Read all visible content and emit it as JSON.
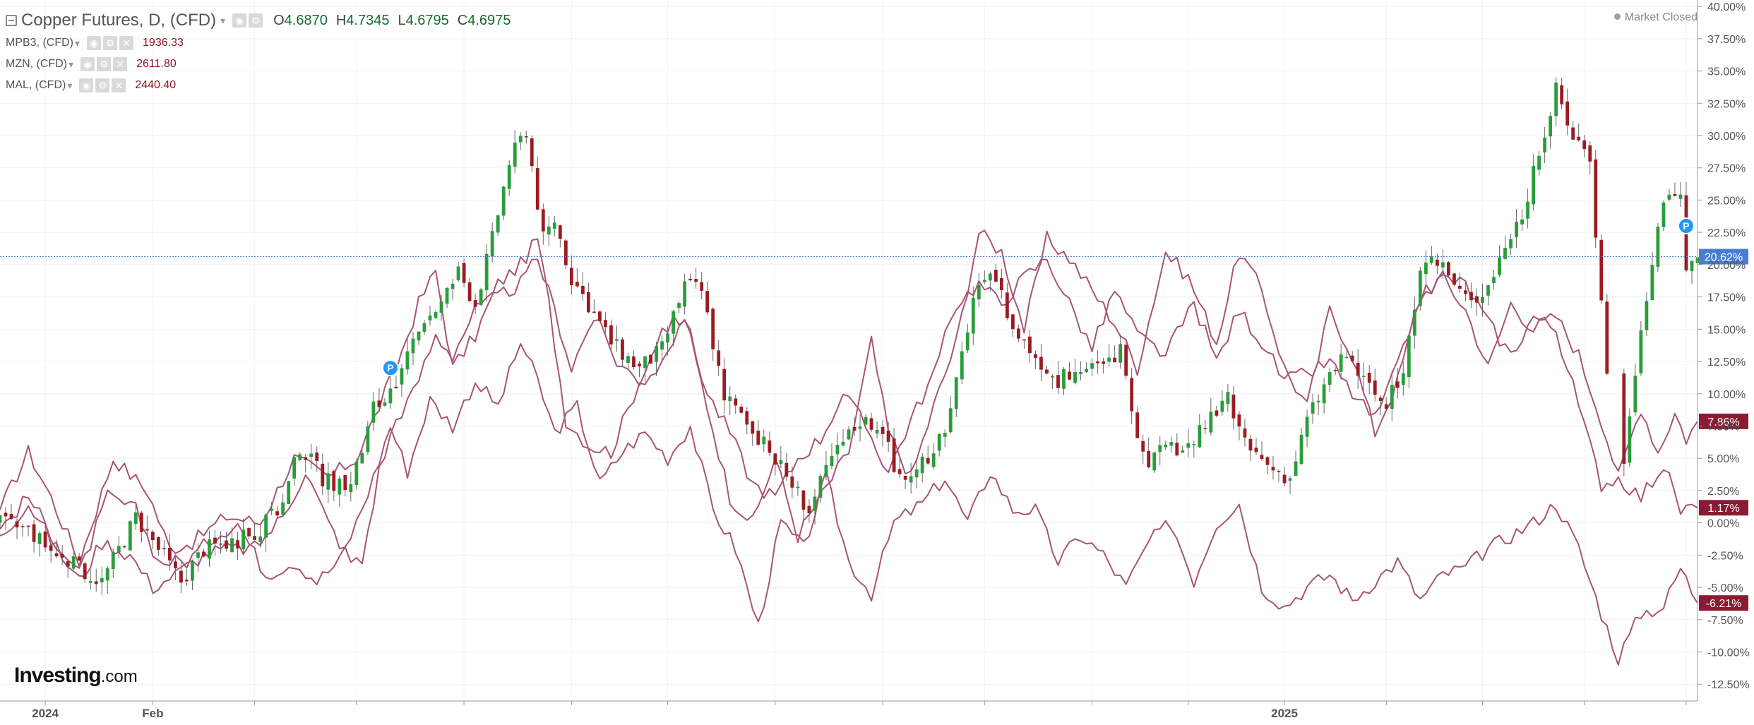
{
  "header": {
    "title": "Copper Futures, D, (CFD)",
    "ohlc": [
      {
        "label": "O",
        "value": "4.6870"
      },
      {
        "label": "H",
        "value": "4.7345"
      },
      {
        "label": "L",
        "value": "4.6795"
      },
      {
        "label": "C",
        "value": "4.6975"
      }
    ]
  },
  "compare": [
    {
      "symbol": "MPB3, (CFD)",
      "value": "1936.33"
    },
    {
      "symbol": "MZN, (CFD)",
      "value": "2611.80"
    },
    {
      "symbol": "MAL, (CFD)",
      "value": "2440.40"
    }
  ],
  "status": "Market Closed",
  "brand": {
    "name": "Investing",
    "suffix": ".com"
  },
  "chart_data": {
    "type": "line",
    "yaxis_ticks": [
      40,
      37.5,
      35,
      32.5,
      30,
      27.5,
      25,
      22.5,
      20,
      17.5,
      15,
      12.5,
      10,
      7.5,
      5,
      2.5,
      0,
      -2.5,
      -5,
      -7.5,
      -10,
      -12.5
    ],
    "yaxis_tick_labels": [
      "40.00%",
      "37.50%",
      "35.00%",
      "32.50%",
      "30.00%",
      "27.50%",
      "25.00%",
      "22.50%",
      "20.00%",
      "17.50%",
      "15.00%",
      "12.50%",
      "10.00%",
      "7.50%",
      "5.00%",
      "2.50%",
      "0.00%",
      "-2.50%",
      "-5.00%",
      "-7.50%",
      "-10.00%",
      "-12.50%"
    ],
    "ylim": [
      -13.8,
      40.5
    ],
    "xlim": [
      0,
      300
    ],
    "x_labels": [
      {
        "x": 8,
        "label": "2024"
      },
      {
        "x": 27,
        "label": "Feb"
      },
      {
        "x": 227,
        "label": "2025"
      }
    ],
    "x_ticks": [
      8,
      27,
      45,
      63,
      82,
      101,
      118,
      137,
      156,
      174,
      193,
      210,
      227,
      245,
      262,
      280,
      298
    ],
    "colors": {
      "up": "#2a9d3b",
      "down": "#9b1c23",
      "compare": "#a85475",
      "current": "#4a7ed6",
      "badge": "#8c1a33"
    },
    "current_value": 20.62,
    "current_label": "20.62%",
    "end_badges": [
      {
        "value": 7.86,
        "label": "7.86%"
      },
      {
        "value": 1.17,
        "label": "1.17%"
      },
      {
        "value": -6.21,
        "label": "-6.21%"
      }
    ],
    "markers": [
      {
        "x": 69,
        "y": 12.0,
        "label": "P"
      },
      {
        "x": 298,
        "y": 23.0,
        "label": "P"
      }
    ],
    "copper_keypoints": [
      [
        0,
        0
      ],
      [
        5,
        -0.5
      ],
      [
        10,
        -2.5
      ],
      [
        14,
        -3.5
      ],
      [
        18,
        -4.5
      ],
      [
        24,
        0.5
      ],
      [
        28,
        -2
      ],
      [
        32,
        -4.5
      ],
      [
        36,
        -2
      ],
      [
        40,
        -1.5
      ],
      [
        45,
        -1
      ],
      [
        50,
        1.5
      ],
      [
        53,
        6
      ],
      [
        57,
        3.5
      ],
      [
        61,
        2.5
      ],
      [
        64,
        5.5
      ],
      [
        66,
        9
      ],
      [
        70,
        10
      ],
      [
        74,
        15.5
      ],
      [
        78,
        17
      ],
      [
        81,
        19.5
      ],
      [
        84,
        17
      ],
      [
        87,
        22
      ],
      [
        90,
        28
      ],
      [
        93,
        30.5
      ],
      [
        96,
        22
      ],
      [
        98,
        23.5
      ],
      [
        101,
        19
      ],
      [
        104,
        17
      ],
      [
        108,
        14
      ],
      [
        113,
        12
      ],
      [
        117,
        13.5
      ],
      [
        121,
        18.5
      ],
      [
        124,
        18
      ],
      [
        128,
        10
      ],
      [
        133,
        7
      ],
      [
        137,
        5
      ],
      [
        140,
        3
      ],
      [
        143,
        1
      ],
      [
        147,
        5
      ],
      [
        152,
        8
      ],
      [
        156,
        7.5
      ],
      [
        158,
        4
      ],
      [
        161,
        3.5
      ],
      [
        164,
        5
      ],
      [
        168,
        8.5
      ],
      [
        172,
        17.5
      ],
      [
        176,
        19
      ],
      [
        179,
        15
      ],
      [
        183,
        13
      ],
      [
        187,
        11
      ],
      [
        191,
        12
      ],
      [
        195,
        12
      ],
      [
        198,
        13.5
      ],
      [
        200,
        8
      ],
      [
        203,
        5
      ],
      [
        206,
        5.5
      ],
      [
        210,
        6
      ],
      [
        213,
        7.5
      ],
      [
        217,
        9.5
      ],
      [
        220,
        6
      ],
      [
        224,
        4.5
      ],
      [
        228,
        3.5
      ],
      [
        231,
        8
      ],
      [
        235,
        11.5
      ],
      [
        238,
        13
      ],
      [
        241,
        11
      ],
      [
        245,
        9
      ],
      [
        248,
        12
      ],
      [
        251,
        19
      ],
      [
        254,
        20.5
      ],
      [
        257,
        18.5
      ],
      [
        260,
        17
      ],
      [
        263,
        18.5
      ],
      [
        266,
        21.5
      ],
      [
        269,
        24
      ],
      [
        272,
        28.5
      ],
      [
        275,
        33.5
      ],
      [
        278,
        30
      ],
      [
        281,
        28.5
      ],
      [
        283,
        17
      ],
      [
        285,
        7
      ],
      [
        287,
        4.5
      ],
      [
        289,
        12
      ],
      [
        291,
        17
      ],
      [
        293,
        23
      ],
      [
        295,
        26
      ],
      [
        297,
        25.5
      ],
      [
        298,
        19.5
      ],
      [
        300,
        20.62
      ]
    ],
    "series": [
      {
        "points": [
          [
            0,
            1
          ],
          [
            5,
            5.5
          ],
          [
            9,
            2
          ],
          [
            14,
            -3
          ],
          [
            20,
            5
          ],
          [
            26,
            2.5
          ],
          [
            30,
            -2
          ],
          [
            34,
            -1.5
          ],
          [
            40,
            0.5
          ],
          [
            46,
            0
          ],
          [
            52,
            5
          ],
          [
            58,
            3.5
          ],
          [
            63,
            5
          ],
          [
            66,
            8
          ],
          [
            70,
            12
          ],
          [
            74,
            17
          ],
          [
            77,
            19.5
          ],
          [
            80,
            12
          ],
          [
            84,
            14.5
          ],
          [
            88,
            18.5
          ],
          [
            92,
            20
          ],
          [
            95,
            22
          ],
          [
            97,
            17
          ],
          [
            100,
            8
          ],
          [
            104,
            6
          ],
          [
            108,
            5.5
          ],
          [
            113,
            11
          ],
          [
            117,
            12
          ],
          [
            121,
            16
          ],
          [
            125,
            9
          ],
          [
            129,
            2
          ],
          [
            133,
            0
          ],
          [
            137,
            5
          ],
          [
            141,
            -1
          ],
          [
            145,
            2
          ],
          [
            150,
            5.5
          ],
          [
            154,
            14
          ],
          [
            157,
            7
          ],
          [
            161,
            3.5
          ],
          [
            165,
            9
          ],
          [
            169,
            14
          ],
          [
            173,
            22.5
          ],
          [
            177,
            21
          ],
          [
            181,
            15
          ],
          [
            185,
            22
          ],
          [
            189,
            20.5
          ],
          [
            193,
            18
          ],
          [
            197,
            15.5
          ],
          [
            201,
            12
          ],
          [
            206,
            21
          ],
          [
            210,
            19
          ],
          [
            215,
            14
          ],
          [
            219,
            21
          ],
          [
            223,
            18
          ],
          [
            227,
            12
          ],
          [
            231,
            9
          ],
          [
            235,
            16.5
          ],
          [
            239,
            13
          ],
          [
            243,
            7
          ],
          [
            247,
            11
          ],
          [
            251,
            17.5
          ],
          [
            255,
            19
          ],
          [
            259,
            16.5
          ],
          [
            263,
            12
          ],
          [
            267,
            17
          ],
          [
            271,
            15
          ],
          [
            275,
            16
          ],
          [
            279,
            13
          ],
          [
            283,
            8
          ],
          [
            286,
            3.5
          ],
          [
            290,
            9
          ],
          [
            293,
            5.5
          ],
          [
            296,
            8.5
          ],
          [
            298,
            6.5
          ],
          [
            300,
            7.86
          ]
        ]
      },
      {
        "points": [
          [
            0,
            -0.5
          ],
          [
            5,
            2
          ],
          [
            10,
            -1.5
          ],
          [
            14,
            -4
          ],
          [
            19,
            2
          ],
          [
            24,
            1
          ],
          [
            28,
            -3
          ],
          [
            33,
            -3
          ],
          [
            38,
            -1
          ],
          [
            42,
            0
          ],
          [
            47,
            -4
          ],
          [
            52,
            -3
          ],
          [
            56,
            -4.5
          ],
          [
            60,
            -3
          ],
          [
            63,
            0
          ],
          [
            66,
            3.5
          ],
          [
            69,
            7.5
          ],
          [
            72,
            4
          ],
          [
            76,
            9.5
          ],
          [
            80,
            7.5
          ],
          [
            84,
            11
          ],
          [
            88,
            9
          ],
          [
            92,
            14
          ],
          [
            95,
            11
          ],
          [
            98,
            7
          ],
          [
            102,
            9
          ],
          [
            106,
            3
          ],
          [
            110,
            5.5
          ],
          [
            114,
            7
          ],
          [
            118,
            5
          ],
          [
            122,
            7.5
          ],
          [
            126,
            1
          ],
          [
            130,
            -2
          ],
          [
            134,
            -8
          ],
          [
            138,
            0
          ],
          [
            142,
            -2
          ],
          [
            146,
            3.5
          ],
          [
            150,
            -3
          ],
          [
            154,
            -5.5
          ],
          [
            158,
            0
          ],
          [
            163,
            1.5
          ],
          [
            167,
            3.5
          ],
          [
            171,
            0
          ],
          [
            175,
            4
          ],
          [
            179,
            1
          ],
          [
            183,
            1
          ],
          [
            187,
            -3
          ],
          [
            191,
            -1
          ],
          [
            195,
            -2.5
          ],
          [
            199,
            -5
          ],
          [
            203,
            -1.5
          ],
          [
            207,
            0
          ],
          [
            211,
            -4.5
          ],
          [
            215,
            0
          ],
          [
            219,
            1.5
          ],
          [
            223,
            -5
          ],
          [
            227,
            -6.5
          ],
          [
            231,
            -5
          ],
          [
            235,
            -4
          ],
          [
            239,
            -6
          ],
          [
            243,
            -4.5
          ],
          [
            247,
            -3
          ],
          [
            251,
            -6
          ],
          [
            255,
            -4
          ],
          [
            259,
            -3.5
          ],
          [
            263,
            -2
          ],
          [
            267,
            -1
          ],
          [
            271,
            0
          ],
          [
            275,
            1.5
          ],
          [
            279,
            -2
          ],
          [
            283,
            -7
          ],
          [
            286,
            -10.5
          ],
          [
            290,
            -7
          ],
          [
            294,
            -6.5
          ],
          [
            297,
            -3.5
          ],
          [
            300,
            -6.21
          ]
        ]
      },
      {
        "points": [
          [
            0,
            -1
          ],
          [
            5,
            1.5
          ],
          [
            10,
            -2
          ],
          [
            14,
            -4.5
          ],
          [
            18,
            -1.5
          ],
          [
            23,
            -2.5
          ],
          [
            27,
            -5
          ],
          [
            31,
            -4
          ],
          [
            36,
            -2.5
          ],
          [
            40,
            -2
          ],
          [
            45,
            -2
          ],
          [
            50,
            0.5
          ],
          [
            54,
            4
          ],
          [
            58,
            0
          ],
          [
            62,
            -3
          ],
          [
            64,
            -3
          ],
          [
            67,
            4
          ],
          [
            70,
            8
          ],
          [
            73,
            10
          ],
          [
            77,
            14.5
          ],
          [
            80,
            13
          ],
          [
            84,
            16.5
          ],
          [
            88,
            17.5
          ],
          [
            92,
            18.5
          ],
          [
            95,
            20.5
          ],
          [
            98,
            16.5
          ],
          [
            101,
            12
          ],
          [
            105,
            16
          ],
          [
            109,
            12.5
          ],
          [
            113,
            11
          ],
          [
            117,
            15
          ],
          [
            121,
            16
          ],
          [
            125,
            10
          ],
          [
            129,
            7
          ],
          [
            133,
            3
          ],
          [
            137,
            2
          ],
          [
            141,
            5
          ],
          [
            145,
            6.5
          ],
          [
            149,
            10
          ],
          [
            153,
            7.5
          ],
          [
            157,
            4
          ],
          [
            161,
            8
          ],
          [
            165,
            11.5
          ],
          [
            169,
            17
          ],
          [
            173,
            18.5
          ],
          [
            177,
            17
          ],
          [
            181,
            19
          ],
          [
            185,
            20.5
          ],
          [
            189,
            17
          ],
          [
            193,
            13.5
          ],
          [
            197,
            18
          ],
          [
            201,
            14.5
          ],
          [
            206,
            13
          ],
          [
            211,
            17
          ],
          [
            215,
            12.5
          ],
          [
            219,
            16.5
          ],
          [
            223,
            14
          ],
          [
            227,
            11
          ],
          [
            231,
            11.5
          ],
          [
            235,
            12.5
          ],
          [
            239,
            10
          ],
          [
            243,
            8
          ],
          [
            247,
            12
          ],
          [
            251,
            17.5
          ],
          [
            255,
            19
          ],
          [
            259,
            18.5
          ],
          [
            263,
            15.5
          ],
          [
            267,
            13
          ],
          [
            271,
            16
          ],
          [
            275,
            15
          ],
          [
            279,
            9
          ],
          [
            283,
            3
          ],
          [
            286,
            3.5
          ],
          [
            290,
            2
          ],
          [
            294,
            4.5
          ],
          [
            297,
            1
          ],
          [
            300,
            1.17
          ]
        ]
      }
    ]
  }
}
